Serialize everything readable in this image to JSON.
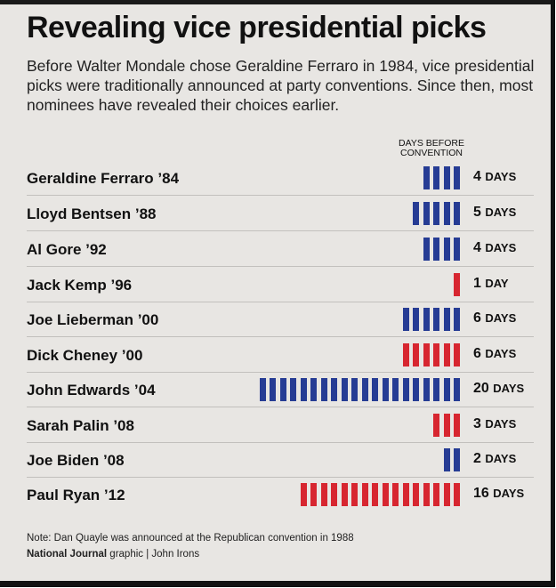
{
  "title": "Revealing vice presidential picks",
  "subtitle": "Before Walter Mondale chose Geraldine Ferraro in 1984, vice presidential picks were traditionally announced at party conventions. Since then, most nominees have revealed their choices earlier.",
  "column_header": [
    "DAYS BEFORE",
    "CONVENTION"
  ],
  "unit_plural": "DAYS",
  "unit_singular": "DAY",
  "note": "Note: Dan Quayle was announced at the Republican convention in 1988",
  "credit": {
    "publication": "National Journal",
    "rest": " graphic | John Irons"
  },
  "colors": {
    "democrat": "#263c94",
    "republican": "#d72630"
  },
  "chart_data": {
    "type": "bar",
    "categories": [
      "Geraldine Ferraro ’84",
      "Lloyd Bentsen ’88",
      "Al Gore ’92",
      "Jack Kemp ’96",
      "Joe Lieberman ’00",
      "Dick Cheney ’00",
      "John Edwards ’04",
      "Sarah Palin ’08",
      "Joe Biden ’08",
      "Paul Ryan ’12"
    ],
    "values": [
      4,
      5,
      4,
      1,
      6,
      6,
      20,
      3,
      2,
      16
    ],
    "party_color": [
      "democrat",
      "democrat",
      "democrat",
      "republican",
      "democrat",
      "republican",
      "democrat",
      "republican",
      "democrat",
      "republican"
    ]
  }
}
